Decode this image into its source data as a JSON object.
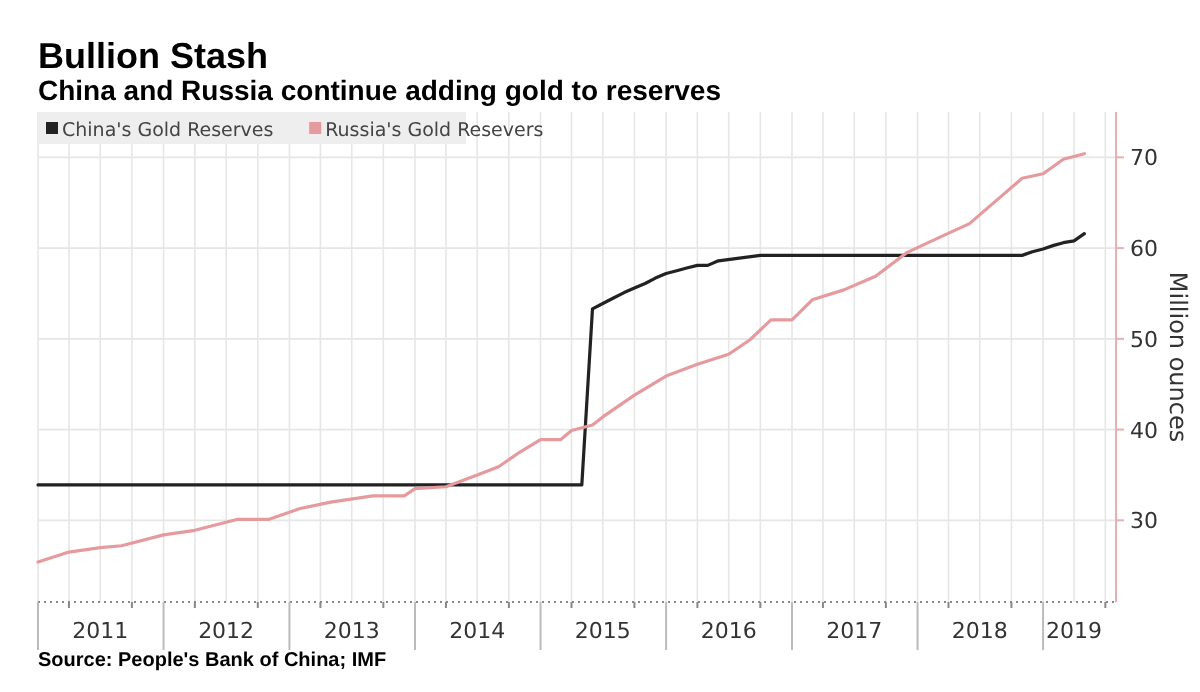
{
  "chart_data": {
    "type": "line",
    "title": "Bullion Stash",
    "subtitle": "China and Russia continue adding gold to reserves",
    "ylabel": "Million ounces",
    "annotations": [
      "Source: People's Bank of China; IMF"
    ],
    "xlim": [
      "2011-01-01",
      "2019-08-01"
    ],
    "ylim": [
      21,
      75
    ],
    "yticks": [
      30,
      40,
      50,
      60,
      70
    ],
    "grid": true,
    "legend": "top left",
    "xticks": [
      {
        "value": "2011-01-01",
        "label": null
      },
      {
        "value": "2011-04-01",
        "label": null
      },
      {
        "value": "2011-07-01",
        "label": "2011"
      },
      {
        "value": "2011-10-01",
        "label": null
      },
      {
        "value": "2012-01-01",
        "label": null
      },
      {
        "value": "2012-04-01",
        "label": null
      },
      {
        "value": "2012-07-01",
        "label": "2012"
      },
      {
        "value": "2012-10-01",
        "label": null
      },
      {
        "value": "2013-01-01",
        "label": null
      },
      {
        "value": "2013-04-01",
        "label": null
      },
      {
        "value": "2013-07-01",
        "label": "2013"
      },
      {
        "value": "2013-10-01",
        "label": null
      },
      {
        "value": "2014-01-01",
        "label": null
      },
      {
        "value": "2014-04-01",
        "label": null
      },
      {
        "value": "2014-07-01",
        "label": "2014"
      },
      {
        "value": "2014-10-01",
        "label": null
      },
      {
        "value": "2015-01-01",
        "label": null
      },
      {
        "value": "2015-04-01",
        "label": null
      },
      {
        "value": "2015-07-01",
        "label": "2015"
      },
      {
        "value": "2015-10-01",
        "label": null
      },
      {
        "value": "2016-01-01",
        "label": null
      },
      {
        "value": "2016-04-01",
        "label": null
      },
      {
        "value": "2016-07-01",
        "label": "2016"
      },
      {
        "value": "2016-10-01",
        "label": null
      },
      {
        "value": "2017-01-01",
        "label": null
      },
      {
        "value": "2017-04-01",
        "label": null
      },
      {
        "value": "2017-07-01",
        "label": "2017"
      },
      {
        "value": "2017-10-01",
        "label": null
      },
      {
        "value": "2018-01-01",
        "label": null
      },
      {
        "value": "2018-04-01",
        "label": null
      },
      {
        "value": "2018-07-01",
        "label": "2018"
      },
      {
        "value": "2018-10-01",
        "label": null
      },
      {
        "value": "2019-01-01",
        "label": null
      },
      {
        "value": "2019-04-01",
        "label": "2019"
      },
      {
        "value": "2019-07-01",
        "label": null
      }
    ],
    "series": [
      {
        "name": "China's Gold Reserves",
        "color": "#222222",
        "x": [
          "2011-01",
          "2015-05",
          "2015-06",
          "2015-07",
          "2015-08",
          "2015-09",
          "2015-10",
          "2015-11",
          "2015-12",
          "2016-01",
          "2016-02",
          "2016-03",
          "2016-04",
          "2016-05",
          "2016-06",
          "2016-08",
          "2016-10",
          "2018-11",
          "2018-12",
          "2019-01",
          "2019-02",
          "2019-03",
          "2019-04",
          "2019-05"
        ],
        "values": [
          33.9,
          33.9,
          53.3,
          53.9,
          54.5,
          55.1,
          55.6,
          56.1,
          56.7,
          57.2,
          57.5,
          57.8,
          58.1,
          58.1,
          58.6,
          58.9,
          59.2,
          59.2,
          59.6,
          59.9,
          60.3,
          60.6,
          60.8,
          61.6
        ]
      },
      {
        "name": "Russia's Gold Resevers",
        "color": "#e59a9e",
        "x": [
          "2011-01",
          "2011-04",
          "2011-07",
          "2011-09",
          "2012-01",
          "2012-04",
          "2012-08",
          "2012-11",
          "2013-02",
          "2013-05",
          "2013-09",
          "2013-12",
          "2014-01",
          "2014-04",
          "2014-07",
          "2014-09",
          "2014-11",
          "2015-01",
          "2015-03",
          "2015-04",
          "2015-06",
          "2015-07",
          "2015-10",
          "2016-01",
          "2016-04",
          "2016-07",
          "2016-09",
          "2016-11",
          "2017-01",
          "2017-03",
          "2017-06",
          "2017-09",
          "2017-12",
          "2018-03",
          "2018-06",
          "2018-09",
          "2018-11",
          "2019-01",
          "2019-03",
          "2019-05"
        ],
        "values": [
          25.4,
          26.5,
          27.0,
          27.2,
          28.4,
          28.9,
          30.1,
          30.1,
          31.3,
          32.0,
          32.7,
          32.7,
          33.5,
          33.7,
          35.0,
          35.9,
          37.5,
          38.9,
          38.9,
          39.9,
          40.5,
          41.4,
          43.8,
          45.9,
          47.2,
          48.3,
          49.9,
          52.1,
          52.1,
          54.3,
          55.4,
          56.9,
          59.5,
          61.1,
          62.7,
          65.7,
          67.7,
          68.2,
          69.8,
          70.4
        ]
      }
    ]
  }
}
